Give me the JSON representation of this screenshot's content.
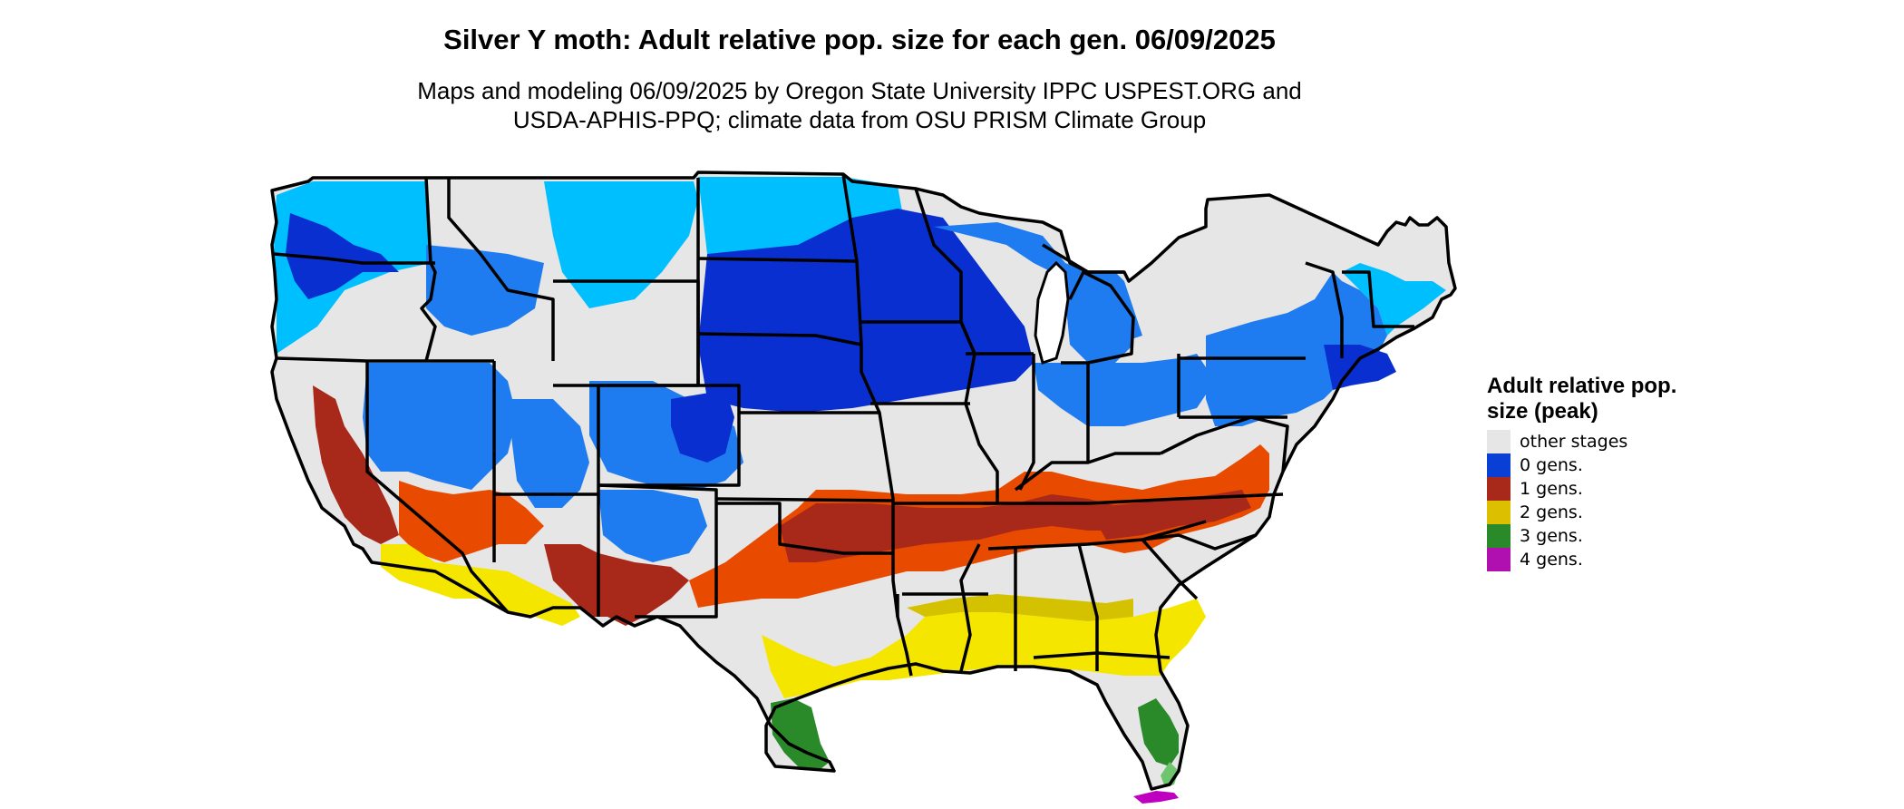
{
  "title": "Silver Y moth: Adult relative pop. size for each gen. 06/09/2025",
  "subtitle": {
    "line1": "Maps and modeling 06/09/2025 by Oregon State University IPPC USPEST.ORG and",
    "line2": "USDA-APHIS-PPQ; climate data from OSU PRISM Climate Group"
  },
  "legend": {
    "title": "Adult relative pop. size (peak)",
    "items": [
      {
        "label": "other stages",
        "color": "#e6e6e6"
      },
      {
        "label": "0 gens.",
        "color": "#0a3fd6"
      },
      {
        "label": "1 gens.",
        "color": "#a8281a"
      },
      {
        "label": "2 gens.",
        "color": "#dcc000"
      },
      {
        "label": "3 gens.",
        "color": "#2a8a2a"
      },
      {
        "label": "4 gens.",
        "color": "#b010b0"
      }
    ]
  },
  "map_colors": {
    "other": "#e6e6e6",
    "light_blue": "#00bfff",
    "mid_blue": "#1e7cf0",
    "dark_blue": "#0a2fd0",
    "orange": "#e84a00",
    "dark_red": "#a8281a",
    "yellow": "#f5e600",
    "dark_yellow": "#d4c200",
    "green": "#2a8a2a",
    "light_green": "#6ec56e",
    "magenta": "#c000c0"
  }
}
